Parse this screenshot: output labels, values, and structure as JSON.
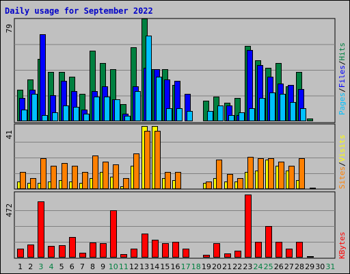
{
  "title": "Daily usage for September 2022",
  "colors": {
    "hits": "#008040",
    "files": "#0000ff",
    "pages": "#00c0ff",
    "visits": "#ffff00",
    "sites": "#ff8000",
    "kbytes": "#ff0000",
    "weekend_label": "#008040",
    "weekday_label": "#000000"
  },
  "legend": {
    "top": [
      {
        "text": "Hits",
        "color": "#008040"
      },
      {
        "text": "/",
        "color": "#000000"
      },
      {
        "text": "Files",
        "color": "#0000ff"
      },
      {
        "text": "/",
        "color": "#000000"
      },
      {
        "text": "Pages",
        "color": "#00c0ff"
      }
    ],
    "mid": [
      {
        "text": "Visits",
        "color": "#ffff00"
      },
      {
        "text": "/",
        "color": "#000000"
      },
      {
        "text": "Sites",
        "color": "#ff8000"
      }
    ],
    "bottom": [
      {
        "text": "KBytes",
        "color": "#ff0000"
      }
    ]
  },
  "chart_data": {
    "type": "bar",
    "categories": [
      "1",
      "2",
      "3",
      "4",
      "5",
      "6",
      "7",
      "8",
      "9",
      "10",
      "11",
      "12",
      "13",
      "14",
      "15",
      "16",
      "17",
      "18",
      "19",
      "20",
      "21",
      "22",
      "23",
      "24",
      "25",
      "26",
      "27",
      "28",
      "29",
      "30",
      "31"
    ],
    "weekend_days": [
      "3",
      "4",
      "10",
      "11",
      "17",
      "18",
      "24",
      "25",
      "31"
    ],
    "panels": [
      {
        "name": "hits-files-pages",
        "ymax_label": "79",
        "ylim": [
          0,
          79
        ],
        "series": [
          {
            "name": "Hits",
            "values": [
              24,
              32,
              48,
              38,
              38,
              34,
              21,
              54,
              45,
              40,
              13,
              57,
              79,
              40,
              40,
              28,
              0,
              0,
              16,
              19,
              14,
              18,
              58,
              47,
              41,
              45,
              27,
              38,
              2,
              0,
              0
            ]
          },
          {
            "name": "Files",
            "values": [
              18,
              24,
              67,
              20,
              31,
              23,
              9,
              23,
              27,
              17,
              6,
              27,
              41,
              40,
              32,
              31,
              21,
              0,
              0,
              0,
              12,
              5,
              55,
              43,
              34,
              29,
              28,
              25,
              0,
              0,
              0
            ]
          },
          {
            "name": "Pages",
            "values": [
              9,
              21,
              5,
              7,
              12,
              11,
              6,
              19,
              19,
              17,
              4,
              23,
              66,
              34,
              10,
              10,
              8,
              0,
              8,
              12,
              5,
              7,
              10,
              18,
              22,
              21,
              15,
              10,
              0,
              0,
              0
            ]
          }
        ]
      },
      {
        "name": "visits-sites",
        "ymax_label": "41",
        "ylim": [
          0,
          41
        ],
        "series": [
          {
            "name": "Visits",
            "values": [
              5,
              4,
              4,
              5,
              6,
              5,
              4,
              7,
              11,
              8,
              2,
              15,
              41,
              41,
              7,
              6,
              0,
              0,
              4,
              7,
              5,
              5,
              11,
              12,
              19,
              15,
              12,
              6,
              0,
              0,
              0
            ]
          },
          {
            "name": "Sites",
            "values": [
              11,
              7,
              20,
              15,
              17,
              15,
              11,
              22,
              18,
              16,
              7,
              23,
              38,
              38,
              11,
              11,
              0,
              0,
              5,
              19,
              10,
              7,
              21,
              20,
              20,
              18,
              15,
              20,
              1,
              0,
              0
            ]
          }
        ]
      },
      {
        "name": "kbytes",
        "ymax_label": "472",
        "ylim": [
          0,
          472
        ],
        "series": [
          {
            "name": "KBytes",
            "values": [
              68,
              100,
              420,
              85,
              90,
              155,
              35,
              115,
              108,
              355,
              25,
              68,
              178,
              135,
              108,
              118,
              65,
              0,
              20,
              110,
              32,
              52,
              472,
              118,
              238,
              118,
              65,
              118,
              8,
              0,
              0
            ]
          }
        ]
      }
    ]
  }
}
